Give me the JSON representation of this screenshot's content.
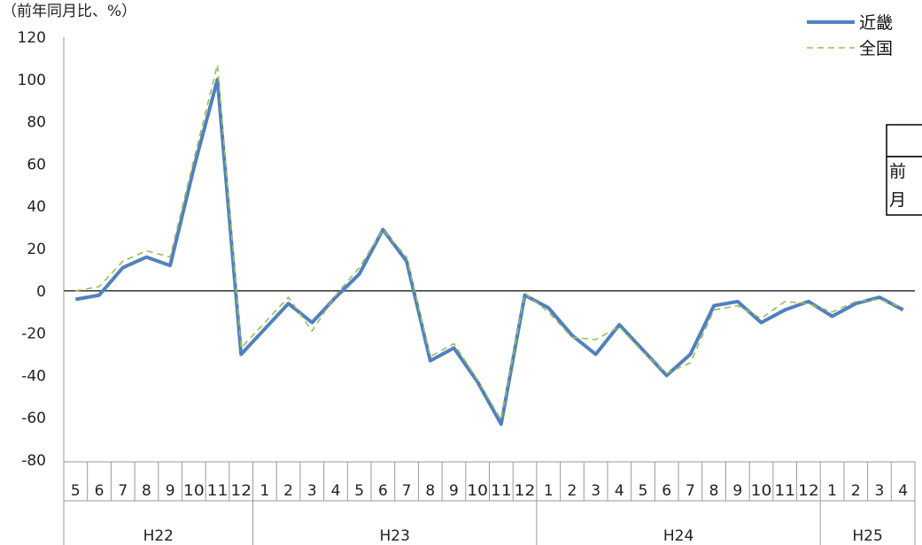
{
  "chart_data": {
    "type": "line",
    "unit_label": "（前年同月比、%）",
    "ylim": [
      -80,
      120
    ],
    "yticks": [
      120,
      100,
      80,
      60,
      40,
      20,
      0,
      -20,
      -40,
      -60,
      -80
    ],
    "categories": [
      "5",
      "6",
      "7",
      "8",
      "9",
      "10",
      "11",
      "12",
      "1",
      "2",
      "3",
      "4",
      "5",
      "6",
      "7",
      "8",
      "9",
      "10",
      "11",
      "12",
      "1",
      "2",
      "3",
      "4",
      "5",
      "6",
      "7",
      "8",
      "9",
      "10",
      "11",
      "12",
      "1",
      "2",
      "3",
      "4"
    ],
    "groups": [
      {
        "label": "H22",
        "start": 0,
        "end": 7
      },
      {
        "label": "H23",
        "start": 8,
        "end": 19
      },
      {
        "label": "H24",
        "start": 20,
        "end": 31
      },
      {
        "label": "H25",
        "start": 32,
        "end": 35
      }
    ],
    "series": [
      {
        "name": "近畿",
        "color": "#4f81bd",
        "style": "solid",
        "values": [
          -4,
          -2,
          11,
          16,
          12,
          58,
          100,
          -30,
          -18,
          -6,
          -15,
          -3,
          8,
          29,
          14,
          -33,
          -27,
          -43,
          -63,
          -2,
          -8,
          -21,
          -30,
          -16,
          -28,
          -40,
          -30,
          -7,
          -5,
          -15,
          -9,
          -5,
          -12,
          -6,
          -3,
          -9
        ]
      },
      {
        "name": "全国",
        "color": "#9bbb59",
        "style": "dashed",
        "values": [
          0,
          2,
          14,
          19,
          16,
          62,
          107,
          -27,
          -15,
          -3,
          -19,
          -2,
          11,
          29,
          16,
          -31,
          -25,
          -42,
          -61,
          -1,
          -10,
          -22,
          -23,
          -17,
          -29,
          -39,
          -34,
          -9,
          -7,
          -13,
          -5,
          -6,
          -10,
          -5,
          -4,
          -8
        ]
      }
    ],
    "side_box": {
      "line1": "前",
      "line2": "月"
    }
  }
}
